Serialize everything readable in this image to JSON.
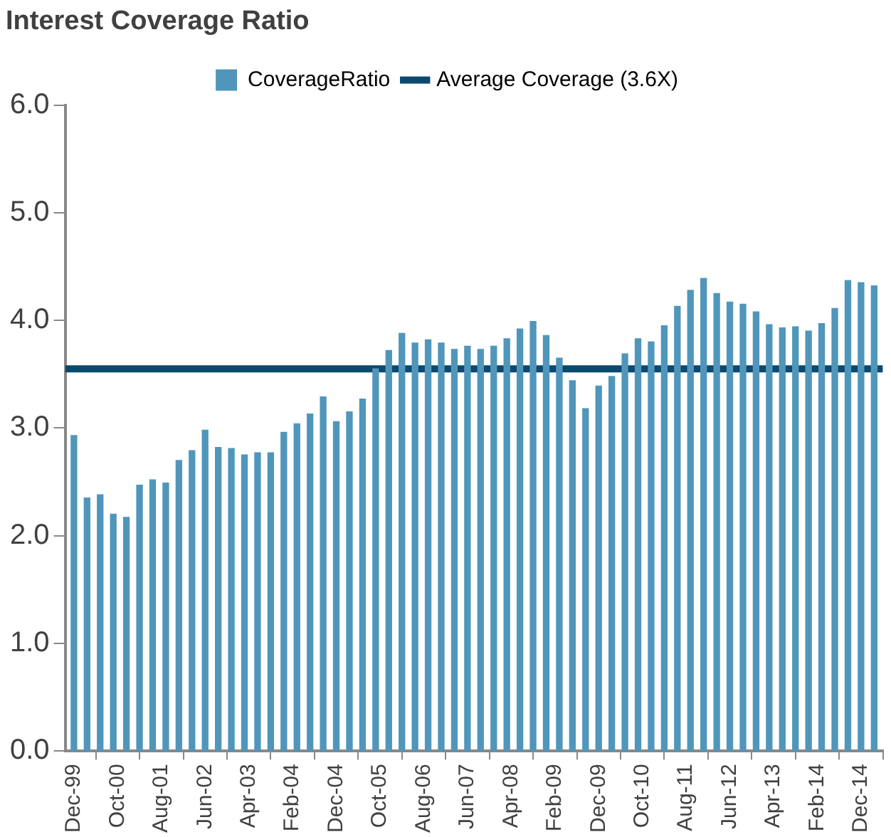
{
  "chart_data": {
    "type": "bar",
    "title": "Interest Coverage Ratio",
    "x": [
      "1999-12",
      "2000-03",
      "2000-06",
      "2000-09",
      "2000-12",
      "2001-03",
      "2001-06",
      "2001-09",
      "2001-12",
      "2002-03",
      "2002-06",
      "2002-09",
      "2002-12",
      "2003-03",
      "2003-06",
      "2003-09",
      "2003-12",
      "2004-03",
      "2004-06",
      "2004-09",
      "2004-12",
      "2005-03",
      "2005-06",
      "2005-09",
      "2005-12",
      "2006-03",
      "2006-06",
      "2006-09",
      "2006-12",
      "2007-03",
      "2007-06",
      "2007-09",
      "2007-12",
      "2008-03",
      "2008-06",
      "2008-09",
      "2008-12",
      "2009-03",
      "2009-06",
      "2009-09",
      "2009-12",
      "2010-03",
      "2010-06",
      "2010-09",
      "2010-12",
      "2011-03",
      "2011-06",
      "2011-09",
      "2011-12",
      "2012-03",
      "2012-06",
      "2012-09",
      "2012-12",
      "2013-03",
      "2013-06",
      "2013-09",
      "2013-12",
      "2014-03",
      "2014-06",
      "2014-09",
      "2014-12",
      "2015-03"
    ],
    "series": [
      {
        "name": "CoverageRatio",
        "color": "#5096bb",
        "values": [
          2.93,
          2.35,
          2.38,
          2.2,
          2.17,
          2.47,
          2.52,
          2.49,
          2.7,
          2.79,
          2.98,
          2.82,
          2.81,
          2.75,
          2.77,
          2.77,
          2.96,
          3.04,
          3.13,
          3.29,
          3.06,
          3.15,
          3.27,
          3.55,
          3.72,
          3.88,
          3.79,
          3.82,
          3.79,
          3.73,
          3.76,
          3.73,
          3.76,
          3.83,
          3.92,
          3.99,
          3.86,
          3.65,
          3.44,
          3.18,
          3.39,
          3.48,
          3.69,
          3.83,
          3.8,
          3.95,
          4.13,
          4.28,
          4.39,
          4.25,
          4.17,
          4.15,
          4.08,
          3.96,
          3.93,
          3.94,
          3.9,
          3.97,
          4.11,
          4.37,
          4.35,
          4.32
        ]
      },
      {
        "name": "Average Coverage (3.6X)",
        "type": "line",
        "color": "#0b4a70",
        "x": [
          "1999-10",
          "2015-05"
        ],
        "values": [
          3.55,
          3.55
        ]
      }
    ],
    "xlim": [
      "1999-10",
      "2015-05"
    ],
    "xticks": [
      {
        "value": "1999-12",
        "label": "Dec-99"
      },
      {
        "value": "2000-10",
        "label": "Oct-00"
      },
      {
        "value": "2001-08",
        "label": "Aug-01"
      },
      {
        "value": "2002-06",
        "label": "Jun-02"
      },
      {
        "value": "2003-04",
        "label": "Apr-03"
      },
      {
        "value": "2004-02",
        "label": "Feb-04"
      },
      {
        "value": "2004-12",
        "label": "Dec-04"
      },
      {
        "value": "2005-10",
        "label": "Oct-05"
      },
      {
        "value": "2006-08",
        "label": "Aug-06"
      },
      {
        "value": "2007-06",
        "label": "Jun-07"
      },
      {
        "value": "2008-04",
        "label": "Apr-08"
      },
      {
        "value": "2009-02",
        "label": "Feb-09"
      },
      {
        "value": "2009-12",
        "label": "Dec-09"
      },
      {
        "value": "2010-10",
        "label": "Oct-10"
      },
      {
        "value": "2011-08",
        "label": "Aug-11"
      },
      {
        "value": "2012-06",
        "label": "Jun-12"
      },
      {
        "value": "2013-04",
        "label": "Apr-13"
      },
      {
        "value": "2014-02",
        "label": "Feb-14"
      },
      {
        "value": "2014-12",
        "label": "Dec-14"
      }
    ],
    "ylim": [
      0,
      6
    ],
    "yticks": [
      {
        "value": 0,
        "label": "0.0"
      },
      {
        "value": 1,
        "label": "1.0"
      },
      {
        "value": 2,
        "label": "2.0"
      },
      {
        "value": 3,
        "label": "3.0"
      },
      {
        "value": 4,
        "label": "4.0"
      },
      {
        "value": 5,
        "label": "5.0"
      },
      {
        "value": 6,
        "label": "6.0"
      }
    ],
    "grid": false,
    "legend": "top",
    "marker": "none",
    "line_style": "solid"
  }
}
